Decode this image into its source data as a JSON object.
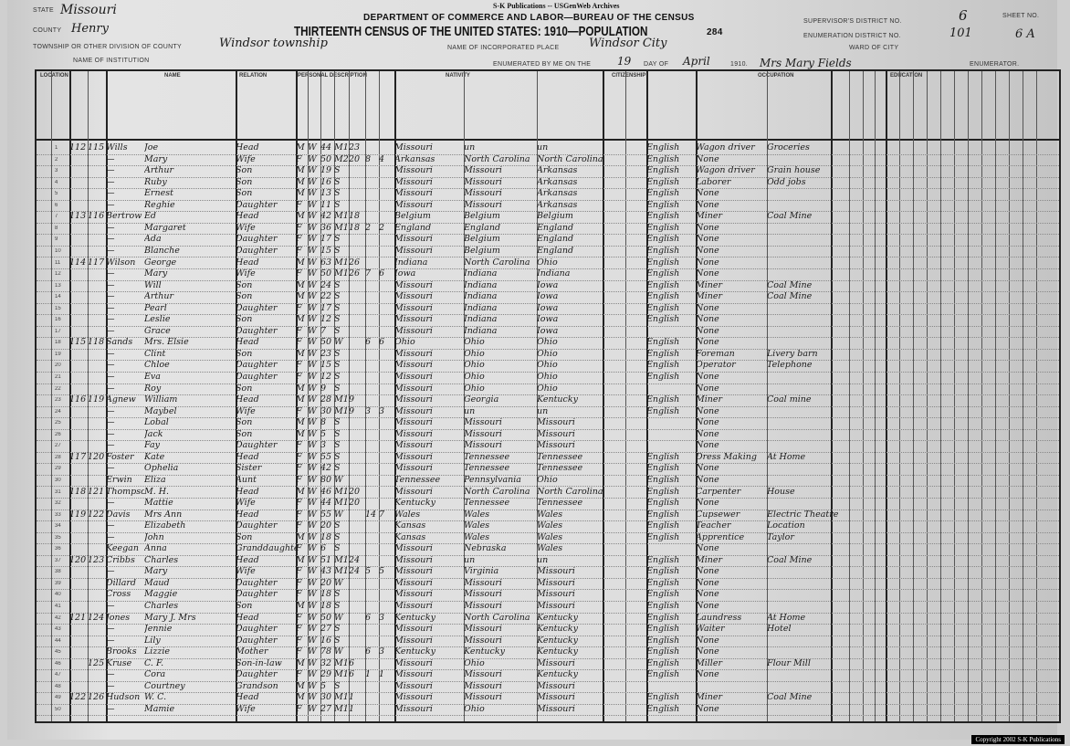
{
  "publisher": "S-K Publications -- USGenWeb Archives",
  "department": "DEPARTMENT OF COMMERCE AND LABOR—BUREAU OF THE CENSUS",
  "title": "THIRTEENTH CENSUS OF THE UNITED STATES: 1910—POPULATION",
  "page_number": "284",
  "form": {
    "state_label": "STATE",
    "state": "Missouri",
    "county_label": "COUNTY",
    "county": "Henry",
    "township_label": "TOWNSHIP OR OTHER DIVISION OF COUNTY",
    "township": "Windsor township",
    "institution_label": "NAME OF INSTITUTION",
    "place_label": "NAME OF INCORPORATED PLACE",
    "place": "Windsor City",
    "enumerated_label": "ENUMERATED BY ME ON THE",
    "day": "19",
    "dayof_label": "DAY OF",
    "month": "April",
    "year_label": "1910.",
    "enumerator": "Mrs Mary Fields",
    "enumerator_label": "ENUMERATOR.",
    "supervisor_label": "SUPERVISOR'S DISTRICT NO.",
    "supervisor": "6",
    "ed_label": "ENUMERATION DISTRICT NO.",
    "ed": "101",
    "ward_label": "WARD OF CITY",
    "sheet_label": "SHEET NO.",
    "sheet": "6 A"
  },
  "column_groups": [
    "LOCATION",
    "NAME",
    "RELATION",
    "PERSONAL DESCRIPTION",
    "NATIVITY",
    "CITIZENSHIP",
    "OCCUPATION",
    "EDUCATION"
  ],
  "rows": [
    [
      "112",
      "115",
      "Wills",
      "Joe",
      "Head",
      "M",
      "W",
      "44",
      "M1",
      "23",
      "",
      "",
      "Missouri",
      "un",
      "un",
      "English",
      "Wagon driver",
      "Groceries"
    ],
    [
      "",
      "",
      "—",
      "Mary",
      "Wife",
      "F",
      "W",
      "50",
      "M2",
      "20",
      "8",
      "4",
      "Arkansas",
      "North Carolina",
      "North Carolina",
      "English",
      "None",
      ""
    ],
    [
      "",
      "",
      "—",
      "Arthur",
      "Son",
      "M",
      "W",
      "19",
      "S",
      "",
      "",
      "",
      "Missouri",
      "Missouri",
      "Arkansas",
      "English",
      "Wagon driver",
      "Grain house"
    ],
    [
      "",
      "",
      "—",
      "Ruby",
      "Son",
      "M",
      "W",
      "16",
      "S",
      "",
      "",
      "",
      "Missouri",
      "Missouri",
      "Arkansas",
      "English",
      "Laborer",
      "Odd jobs"
    ],
    [
      "",
      "",
      "—",
      "Ernest",
      "Son",
      "M",
      "W",
      "13",
      "S",
      "",
      "",
      "",
      "Missouri",
      "Missouri",
      "Arkansas",
      "English",
      "None",
      ""
    ],
    [
      "",
      "",
      "—",
      "Reghie",
      "Daughter",
      "F",
      "W",
      "11",
      "S",
      "",
      "",
      "",
      "Missouri",
      "Missouri",
      "Arkansas",
      "English",
      "None",
      ""
    ],
    [
      "113",
      "116",
      "Bertrow",
      "Ed",
      "Head",
      "M",
      "W",
      "42",
      "M1",
      "18",
      "",
      "",
      "Belgium",
      "Belgium",
      "Belgium",
      "English",
      "Miner",
      "Coal Mine"
    ],
    [
      "",
      "",
      "—",
      "Margaret",
      "Wife",
      "F",
      "W",
      "36",
      "M1",
      "18",
      "2",
      "2",
      "England",
      "England",
      "England",
      "English",
      "None",
      ""
    ],
    [
      "",
      "",
      "—",
      "Ada",
      "Daughter",
      "F",
      "W",
      "17",
      "S",
      "",
      "",
      "",
      "Missouri",
      "Belgium",
      "England",
      "English",
      "None",
      ""
    ],
    [
      "",
      "",
      "—",
      "Blanche",
      "Daughter",
      "F",
      "W",
      "15",
      "S",
      "",
      "",
      "",
      "Missouri",
      "Belgium",
      "England",
      "English",
      "None",
      ""
    ],
    [
      "114",
      "117",
      "Wilson",
      "George",
      "Head",
      "M",
      "W",
      "63",
      "M1",
      "26",
      "",
      "",
      "Indiana",
      "North Carolina",
      "Ohio",
      "English",
      "None",
      ""
    ],
    [
      "",
      "",
      "—",
      "Mary",
      "Wife",
      "F",
      "W",
      "50",
      "M1",
      "26",
      "7",
      "6",
      "Iowa",
      "Indiana",
      "Indiana",
      "English",
      "None",
      ""
    ],
    [
      "",
      "",
      "—",
      "Will",
      "Son",
      "M",
      "W",
      "24",
      "S",
      "",
      "",
      "",
      "Missouri",
      "Indiana",
      "Iowa",
      "English",
      "Miner",
      "Coal Mine"
    ],
    [
      "",
      "",
      "—",
      "Arthur",
      "Son",
      "M",
      "W",
      "22",
      "S",
      "",
      "",
      "",
      "Missouri",
      "Indiana",
      "Iowa",
      "English",
      "Miner",
      "Coal Mine"
    ],
    [
      "",
      "",
      "—",
      "Pearl",
      "Daughter",
      "F",
      "W",
      "17",
      "S",
      "",
      "",
      "",
      "Missouri",
      "Indiana",
      "Iowa",
      "English",
      "None",
      ""
    ],
    [
      "",
      "",
      "—",
      "Leslie",
      "Son",
      "M",
      "W",
      "12",
      "S",
      "",
      "",
      "",
      "Missouri",
      "Indiana",
      "Iowa",
      "English",
      "None",
      ""
    ],
    [
      "",
      "",
      "—",
      "Grace",
      "Daughter",
      "F",
      "W",
      "7",
      "S",
      "",
      "",
      "",
      "Missouri",
      "Indiana",
      "Iowa",
      "",
      "None",
      ""
    ],
    [
      "115",
      "118",
      "Sands",
      "Mrs. Elsie",
      "Head",
      "F",
      "W",
      "50",
      "W",
      "",
      "6",
      "6",
      "Ohio",
      "Ohio",
      "Ohio",
      "English",
      "None",
      ""
    ],
    [
      "",
      "",
      "—",
      "Clint",
      "Son",
      "M",
      "W",
      "23",
      "S",
      "",
      "",
      "",
      "Missouri",
      "Ohio",
      "Ohio",
      "English",
      "Foreman",
      "Livery barn"
    ],
    [
      "",
      "",
      "—",
      "Chloe",
      "Daughter",
      "F",
      "W",
      "15",
      "S",
      "",
      "",
      "",
      "Missouri",
      "Ohio",
      "Ohio",
      "English",
      "Operator",
      "Telephone"
    ],
    [
      "",
      "",
      "—",
      "Eva",
      "Daughter",
      "F",
      "W",
      "12",
      "S",
      "",
      "",
      "",
      "Missouri",
      "Ohio",
      "Ohio",
      "English",
      "None",
      ""
    ],
    [
      "",
      "",
      "—",
      "Roy",
      "Son",
      "M",
      "W",
      "9",
      "S",
      "",
      "",
      "",
      "Missouri",
      "Ohio",
      "Ohio",
      "",
      "None",
      ""
    ],
    [
      "116",
      "119",
      "Agnew",
      "William",
      "Head",
      "M",
      "W",
      "28",
      "M1",
      "9",
      "",
      "",
      "Missouri",
      "Georgia",
      "Kentucky",
      "English",
      "Miner",
      "Coal mine"
    ],
    [
      "",
      "",
      "—",
      "Maybel",
      "Wife",
      "F",
      "W",
      "30",
      "M1",
      "9",
      "3",
      "3",
      "Missouri",
      "un",
      "un",
      "English",
      "None",
      ""
    ],
    [
      "",
      "",
      "—",
      "Lobal",
      "Son",
      "M",
      "W",
      "8",
      "S",
      "",
      "",
      "",
      "Missouri",
      "Missouri",
      "Missouri",
      "",
      "None",
      ""
    ],
    [
      "",
      "",
      "—",
      "Jack",
      "Son",
      "M",
      "W",
      "5",
      "S",
      "",
      "",
      "",
      "Missouri",
      "Missouri",
      "Missouri",
      "",
      "None",
      ""
    ],
    [
      "",
      "",
      "—",
      "Fay",
      "Daughter",
      "F",
      "W",
      "3",
      "S",
      "",
      "",
      "",
      "Missouri",
      "Missouri",
      "Missouri",
      "",
      "None",
      ""
    ],
    [
      "117",
      "120",
      "Foster",
      "Kate",
      "Head",
      "F",
      "W",
      "55",
      "S",
      "",
      "",
      "",
      "Missouri",
      "Tennessee",
      "Tennessee",
      "English",
      "Dress Making",
      "At Home"
    ],
    [
      "",
      "",
      "—",
      "Ophelia",
      "Sister",
      "F",
      "W",
      "42",
      "S",
      "",
      "",
      "",
      "Missouri",
      "Tennessee",
      "Tennessee",
      "English",
      "None",
      ""
    ],
    [
      "",
      "",
      "Erwin",
      "Eliza",
      "Aunt",
      "F",
      "W",
      "80",
      "W",
      "",
      "",
      "",
      "Tennessee",
      "Pennsylvania",
      "Ohio",
      "English",
      "None",
      ""
    ],
    [
      "118",
      "121",
      "Thompson",
      "M. H.",
      "Head",
      "M",
      "W",
      "46",
      "M1",
      "20",
      "",
      "",
      "Missouri",
      "North Carolina",
      "North Carolina",
      "English",
      "Carpenter",
      "House"
    ],
    [
      "",
      "",
      "—",
      "Mattie",
      "Wife",
      "F",
      "W",
      "44",
      "M1",
      "20",
      "",
      "",
      "Kentucky",
      "Tennessee",
      "Tennessee",
      "English",
      "None",
      ""
    ],
    [
      "119",
      "122",
      "Davis",
      "Mrs Ann",
      "Head",
      "F",
      "W",
      "55",
      "W",
      "",
      "14",
      "7",
      "Wales",
      "Wales",
      "Wales",
      "English",
      "Cupsewer",
      "Electric Theatre"
    ],
    [
      "",
      "",
      "—",
      "Elizabeth",
      "Daughter",
      "F",
      "W",
      "20",
      "S",
      "",
      "",
      "",
      "Kansas",
      "Wales",
      "Wales",
      "English",
      "Teacher",
      "Location"
    ],
    [
      "",
      "",
      "—",
      "John",
      "Son",
      "M",
      "W",
      "18",
      "S",
      "",
      "",
      "",
      "Kansas",
      "Wales",
      "Wales",
      "English",
      "Apprentice",
      "Taylor"
    ],
    [
      "",
      "",
      "Keegan",
      "Anna",
      "Granddaughter",
      "F",
      "W",
      "6",
      "S",
      "",
      "",
      "",
      "Missouri",
      "Nebraska",
      "Wales",
      "",
      "None",
      ""
    ],
    [
      "120",
      "123",
      "Cribbs",
      "Charles",
      "Head",
      "M",
      "W",
      "51",
      "M1",
      "24",
      "",
      "",
      "Missouri",
      "un",
      "un",
      "English",
      "Miner",
      "Coal Mine"
    ],
    [
      "",
      "",
      "—",
      "Mary",
      "Wife",
      "F",
      "W",
      "43",
      "M1",
      "24",
      "5",
      "5",
      "Missouri",
      "Virginia",
      "Missouri",
      "English",
      "None",
      ""
    ],
    [
      "",
      "",
      "Dillard",
      "Maud",
      "Daughter",
      "F",
      "W",
      "20",
      "W",
      "",
      "",
      "",
      "Missouri",
      "Missouri",
      "Missouri",
      "English",
      "None",
      ""
    ],
    [
      "",
      "",
      "Cross",
      "Maggie",
      "Daughter",
      "F",
      "W",
      "18",
      "S",
      "",
      "",
      "",
      "Missouri",
      "Missouri",
      "Missouri",
      "English",
      "None",
      ""
    ],
    [
      "",
      "",
      "—",
      "Charles",
      "Son",
      "M",
      "W",
      "18",
      "S",
      "",
      "",
      "",
      "Missouri",
      "Missouri",
      "Missouri",
      "English",
      "None",
      ""
    ],
    [
      "121",
      "124",
      "Jones",
      "Mary J. Mrs",
      "Head",
      "F",
      "W",
      "50",
      "W",
      "",
      "6",
      "3",
      "Kentucky",
      "North Carolina",
      "Kentucky",
      "English",
      "Laundress",
      "At Home"
    ],
    [
      "",
      "",
      "—",
      "Jennie",
      "Daughter",
      "F",
      "W",
      "27",
      "S",
      "",
      "",
      "",
      "Missouri",
      "Missouri",
      "Kentucky",
      "English",
      "Waiter",
      "Hotel"
    ],
    [
      "",
      "",
      "—",
      "Lily",
      "Daughter",
      "F",
      "W",
      "16",
      "S",
      "",
      "",
      "",
      "Missouri",
      "Missouri",
      "Kentucky",
      "English",
      "None",
      ""
    ],
    [
      "",
      "",
      "Brooks",
      "Lizzie",
      "Mother",
      "F",
      "W",
      "78",
      "W",
      "",
      "6",
      "3",
      "Kentucky",
      "Kentucky",
      "Kentucky",
      "English",
      "None",
      ""
    ],
    [
      "",
      "125",
      "Kruse",
      "C. F.",
      "Son-in-law",
      "M",
      "W",
      "32",
      "M1",
      "6",
      "",
      "",
      "Missouri",
      "Ohio",
      "Missouri",
      "English",
      "Miller",
      "Flour Mill"
    ],
    [
      "",
      "",
      "—",
      "Cora",
      "Daughter",
      "F",
      "W",
      "29",
      "M1",
      "6",
      "1",
      "1",
      "Missouri",
      "Missouri",
      "Kentucky",
      "English",
      "None",
      ""
    ],
    [
      "",
      "",
      "—",
      "Courtney",
      "Grandson",
      "M",
      "W",
      "5",
      "S",
      "",
      "",
      "",
      "Missouri",
      "Missouri",
      "Missouri",
      "",
      "",
      ""
    ],
    [
      "122",
      "126",
      "Hudson",
      "W. C.",
      "Head",
      "M",
      "W",
      "30",
      "M1",
      "1",
      "",
      "",
      "Missouri",
      "Missouri",
      "Missouri",
      "English",
      "Miner",
      "Coal Mine"
    ],
    [
      "",
      "",
      "—",
      "Mamie",
      "Wife",
      "F",
      "W",
      "27",
      "M1",
      "1",
      "",
      "",
      "Missouri",
      "Ohio",
      "Missouri",
      "English",
      "None",
      ""
    ]
  ],
  "copyright": "Copyright 2002 S-K Publications"
}
